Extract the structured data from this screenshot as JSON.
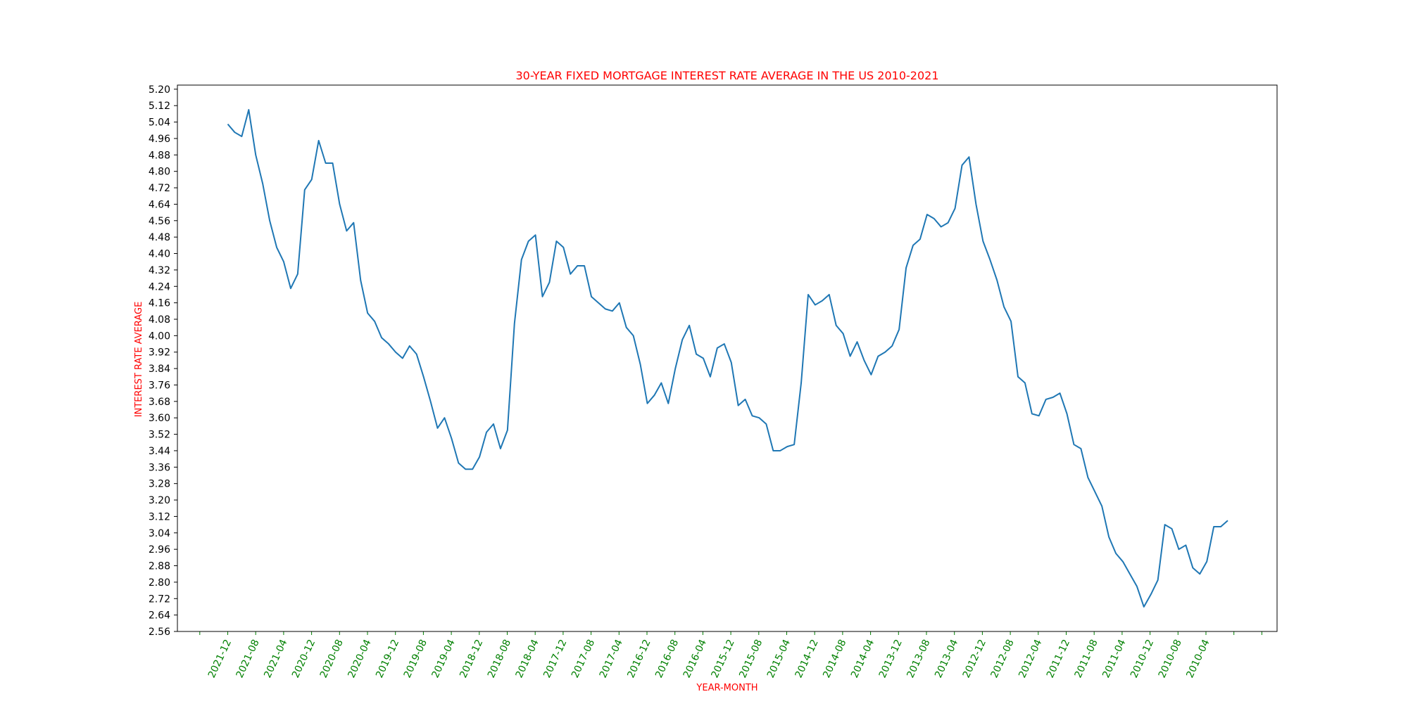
{
  "chart_data": {
    "type": "line",
    "title": "30-YEAR FIXED MORTGAGE INTEREST RATE AVERAGE IN THE US 2010-2021",
    "xlabel": "YEAR-MONTH",
    "ylabel": "INTEREST RATE AVERAGE",
    "x_direction": "descending (newest on left)",
    "xticks": [
      "2021-12",
      "2021-08",
      "2021-04",
      "2020-12",
      "2020-08",
      "2020-04",
      "2019-12",
      "2019-08",
      "2019-04",
      "2018-12",
      "2018-08",
      "2018-04",
      "2017-12",
      "2017-08",
      "2017-04",
      "2016-12",
      "2016-08",
      "2016-04",
      "2015-12",
      "2015-08",
      "2015-04",
      "2014-12",
      "2014-08",
      "2014-04",
      "2013-12",
      "2013-08",
      "2013-04",
      "2012-12",
      "2012-08",
      "2012-04",
      "2011-12",
      "2011-08",
      "2011-04",
      "2010-12",
      "2010-08",
      "2010-04"
    ],
    "yticks": [
      "2.56",
      "2.64",
      "2.72",
      "2.80",
      "2.88",
      "2.96",
      "3.04",
      "3.12",
      "3.20",
      "3.28",
      "3.36",
      "3.44",
      "3.52",
      "3.60",
      "3.68",
      "3.76",
      "3.84",
      "3.92",
      "4.00",
      "4.08",
      "4.16",
      "4.24",
      "4.32",
      "4.40",
      "4.48",
      "4.56",
      "4.64",
      "4.72",
      "4.80",
      "4.88",
      "4.96",
      "5.04",
      "5.12",
      "5.20"
    ],
    "ylim": [
      2.56,
      5.22
    ],
    "grid": false,
    "colors": {
      "line": "#1f77b4",
      "title": "#ff0000",
      "axis_labels": "#ff0000",
      "xtick_labels": "#008000",
      "ytick_labels": "#000000"
    },
    "series": [
      {
        "values": [
          5.03,
          4.99,
          4.97,
          5.1,
          4.88,
          4.74,
          4.56,
          4.43,
          4.36,
          4.23,
          4.3,
          4.71,
          4.76,
          4.95,
          4.84,
          4.84,
          4.64,
          4.51,
          4.55,
          4.27,
          4.11,
          4.07,
          3.99,
          3.96,
          3.92,
          3.89,
          3.95,
          3.91,
          3.8,
          3.68,
          3.55,
          3.6,
          3.5,
          3.38,
          3.35,
          3.35,
          3.41,
          3.53,
          3.57,
          3.45,
          3.54,
          4.06,
          4.37,
          4.46,
          4.49,
          4.19,
          4.26,
          4.46,
          4.43,
          4.3,
          4.34,
          4.34,
          4.19,
          4.16,
          4.13,
          4.12,
          4.16,
          4.04,
          4.0,
          3.86,
          3.67,
          3.71,
          3.77,
          3.67,
          3.84,
          3.98,
          4.05,
          3.91,
          3.89,
          3.8,
          3.94,
          3.96,
          3.87,
          3.66,
          3.69,
          3.61,
          3.6,
          3.57,
          3.44,
          3.44,
          3.46,
          3.47,
          3.77,
          4.2,
          4.15,
          4.17,
          4.2,
          4.05,
          4.01,
          3.9,
          3.97,
          3.88,
          3.81,
          3.9,
          3.92,
          3.95,
          4.03,
          4.33,
          4.44,
          4.47,
          4.59,
          4.57,
          4.53,
          4.55,
          4.62,
          4.83,
          4.87,
          4.64,
          4.46,
          4.37,
          4.27,
          4.14,
          4.07,
          3.8,
          3.77,
          3.62,
          3.61,
          3.69,
          3.7,
          3.72,
          3.62,
          3.47,
          3.45,
          3.31,
          3.24,
          3.17,
          3.02,
          2.94,
          2.9,
          2.84,
          2.78,
          2.68,
          2.74,
          2.81,
          3.08,
          3.06,
          2.96,
          2.98,
          2.87,
          2.84,
          2.9,
          3.07,
          3.07,
          3.1
        ]
      }
    ]
  }
}
